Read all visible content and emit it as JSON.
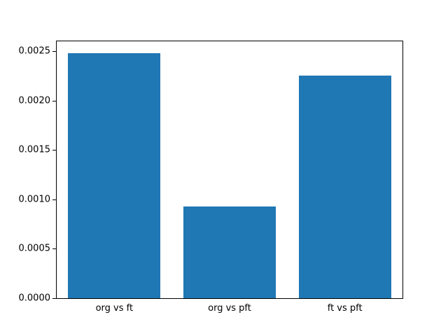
{
  "chart_data": {
    "type": "bar",
    "title": "",
    "xlabel": "",
    "ylabel": "",
    "categories": [
      "org vs ft",
      "org vs pft",
      "ft vs pft"
    ],
    "values": [
      0.00248,
      0.00093,
      0.00225
    ],
    "ylim": [
      0,
      0.0026
    ],
    "yticks": [
      0.0,
      0.0005,
      0.001,
      0.0015,
      0.002,
      0.0025
    ],
    "yticklabels": [
      "0.0000",
      "0.0005",
      "0.0010",
      "0.0015",
      "0.0020",
      "0.0025"
    ],
    "bar_color": "#1f77b4",
    "bar_width_fraction": 0.8,
    "grid": false,
    "legend": null
  }
}
